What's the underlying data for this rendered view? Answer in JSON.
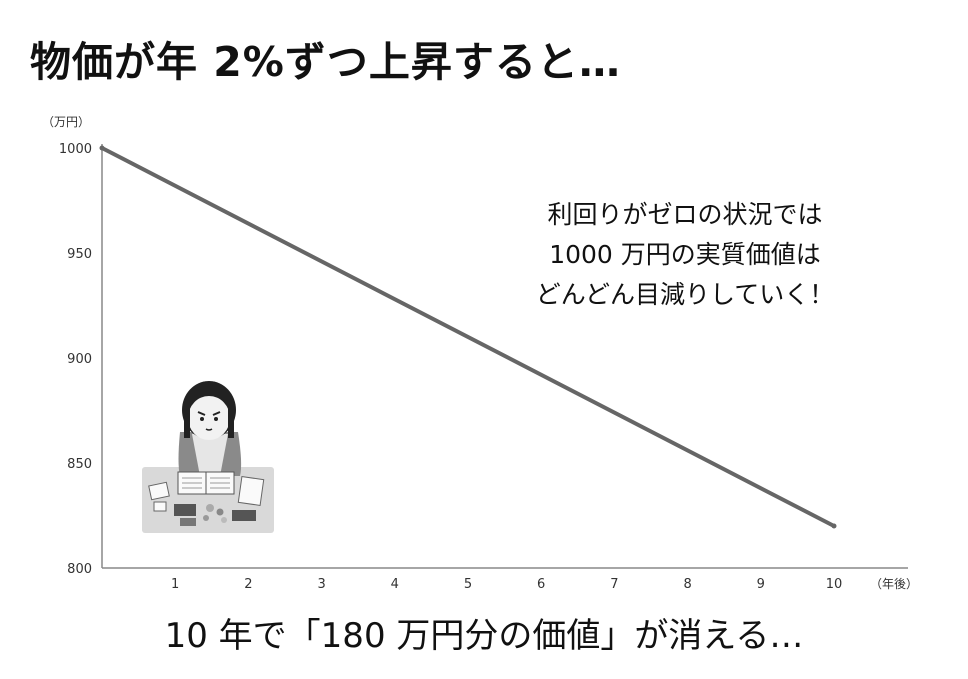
{
  "title": "物価が年 2%ずつ上昇すると…",
  "annotation": "利回りがゼロの状況では\n1000 万円の実質価値は\nどんどん目減りしていく！",
  "caption": "10 年で「180 万円分の価値」が消える…",
  "chart_data": {
    "type": "line",
    "y_unit_label": "（万円）",
    "x_unit_label": "（年後）",
    "x": [
      0,
      10
    ],
    "values": [
      1000,
      820
    ],
    "xlim": [
      0,
      10
    ],
    "ylim": [
      800,
      1000
    ],
    "x_ticks": [
      1,
      2,
      3,
      4,
      5,
      6,
      7,
      8,
      9,
      10
    ],
    "y_ticks": [
      800,
      850,
      900,
      950,
      1000
    ],
    "grid": false,
    "line_color": "#666666"
  }
}
